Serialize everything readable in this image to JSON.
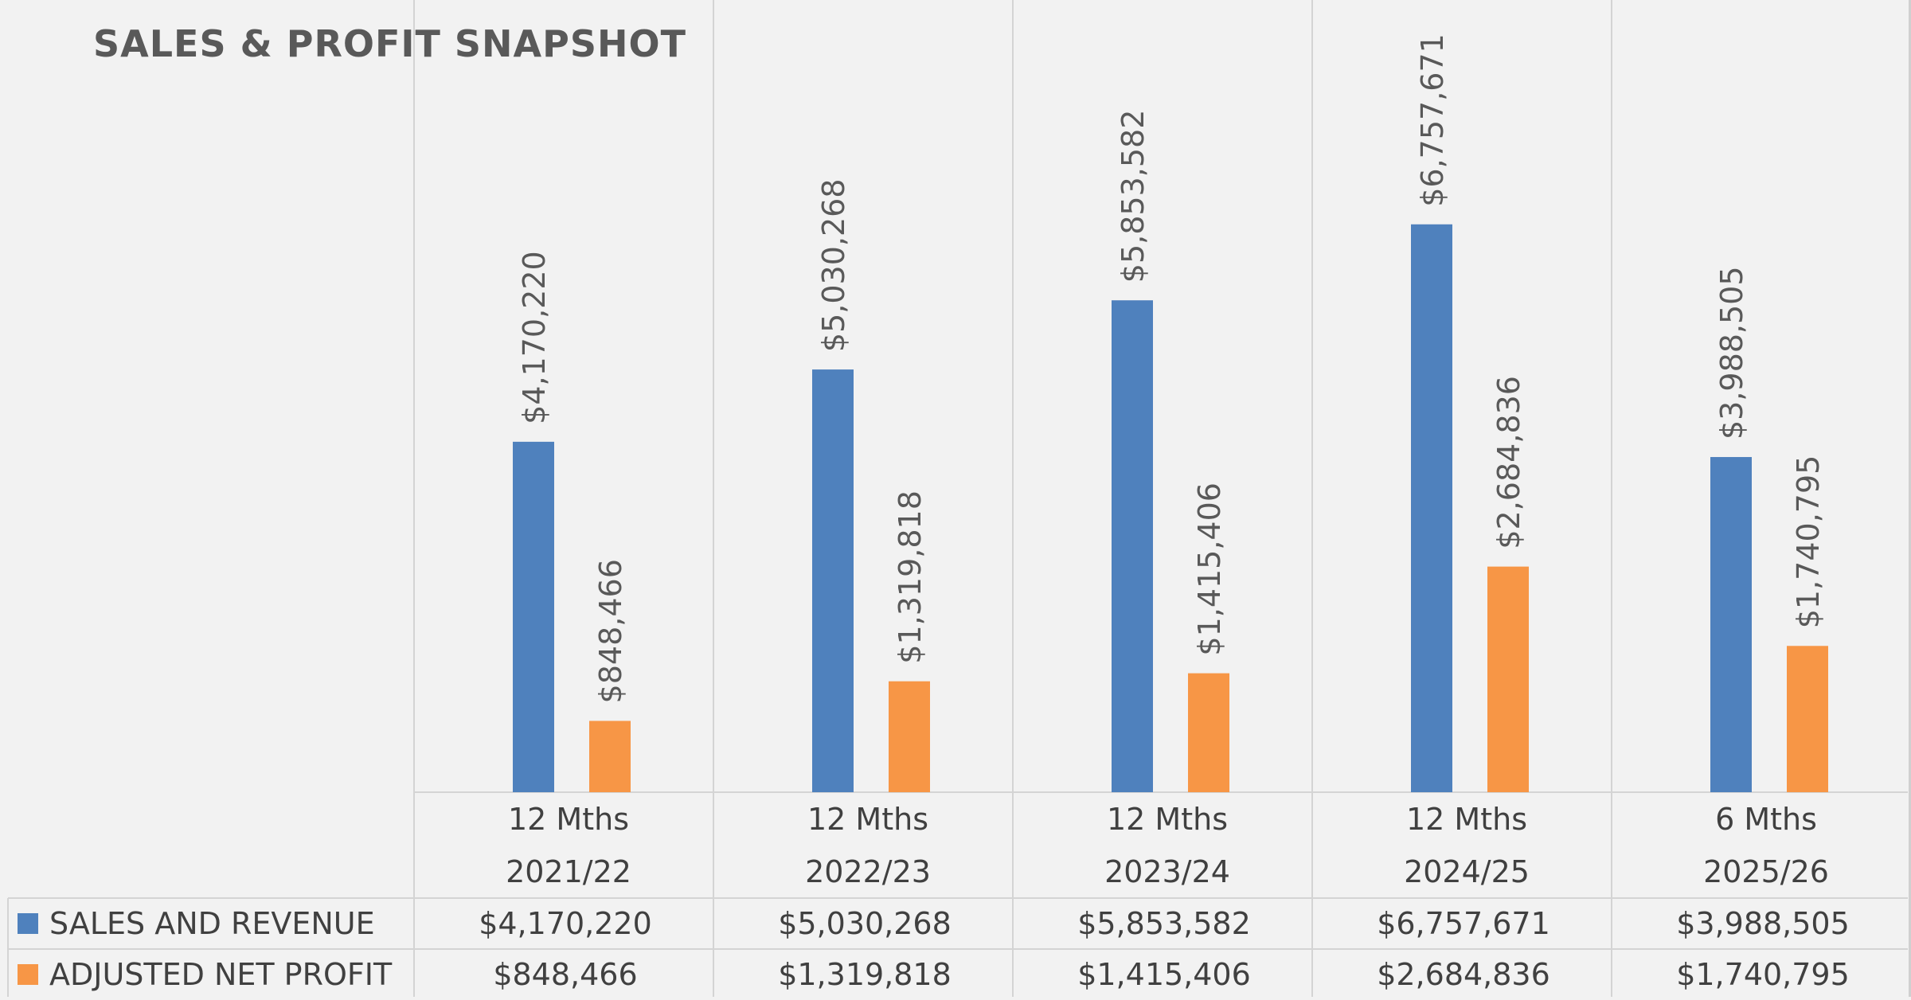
{
  "colors": {
    "sales": "#4f81bd",
    "profit": "#f79646",
    "grid": "#d4d4d4",
    "background": "#f2f2f2"
  },
  "chart_data": {
    "type": "bar",
    "title": "SALES & PROFIT SNAPSHOT",
    "categories": [
      {
        "period": "12 Mths",
        "year": "2021/22"
      },
      {
        "period": "12 Mths",
        "year": "2022/23"
      },
      {
        "period": "12 Mths",
        "year": "2023/24"
      },
      {
        "period": "12 Mths",
        "year": "2024/25"
      },
      {
        "period": "6 Mths",
        "year": "2025/26"
      }
    ],
    "series": [
      {
        "name": "SALES AND REVENUE",
        "values": [
          4170220,
          5030268,
          5853582,
          6757671,
          3988505
        ],
        "labels": [
          "$4,170,220",
          "$5,030,268",
          "$5,853,582",
          "$6,757,671",
          "$3,988,505"
        ]
      },
      {
        "name": "ADJUSTED NET PROFIT",
        "values": [
          848466,
          1319818,
          1415406,
          2684836,
          1740795
        ],
        "labels": [
          "$848,466",
          "$1,319,818",
          "$1,415,406",
          "$2,684,836",
          "$1,740,795"
        ]
      }
    ],
    "ylim": [
      0,
      8000000
    ],
    "grid": false,
    "legend": "data-table",
    "data_labels": "rotated-vertical"
  }
}
